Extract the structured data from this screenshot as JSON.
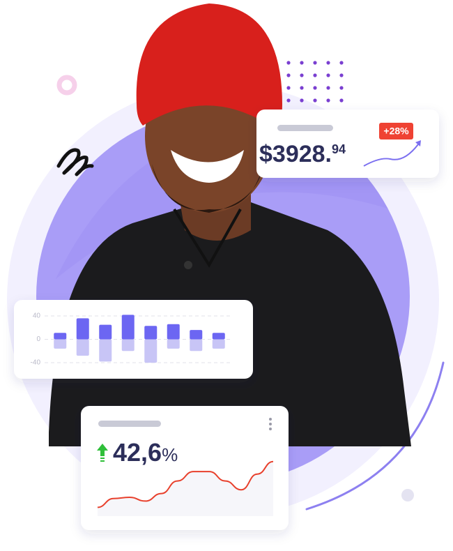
{
  "revenue_card": {
    "amount": "$3928.",
    "cents": "94",
    "badge": "+28%"
  },
  "growth_card": {
    "value": "42,6",
    "unit": "%"
  },
  "chart_data": [
    {
      "type": "bar",
      "categories": [
        null,
        null,
        null,
        null,
        null,
        null,
        null,
        null
      ],
      "series": [
        {
          "color": "#6c66f2",
          "values": [
            11,
            36,
            25,
            42,
            23,
            26,
            16,
            11
          ]
        },
        {
          "color": "#c8c5f6",
          "values": [
            -16,
            -28,
            -38,
            -20,
            -40,
            -16,
            -20,
            -16
          ]
        }
      ],
      "ylim": [
        -44,
        44
      ],
      "yticks": [
        40,
        0,
        -40
      ],
      "grid": true
    },
    {
      "type": "line",
      "x": [
        0,
        1,
        2,
        3,
        4,
        5,
        6,
        7,
        8,
        9,
        10,
        11
      ],
      "values": [
        14,
        28,
        30,
        24,
        36,
        56,
        71,
        71,
        56,
        42,
        67,
        87
      ],
      "color": "#e8402c"
    }
  ]
}
